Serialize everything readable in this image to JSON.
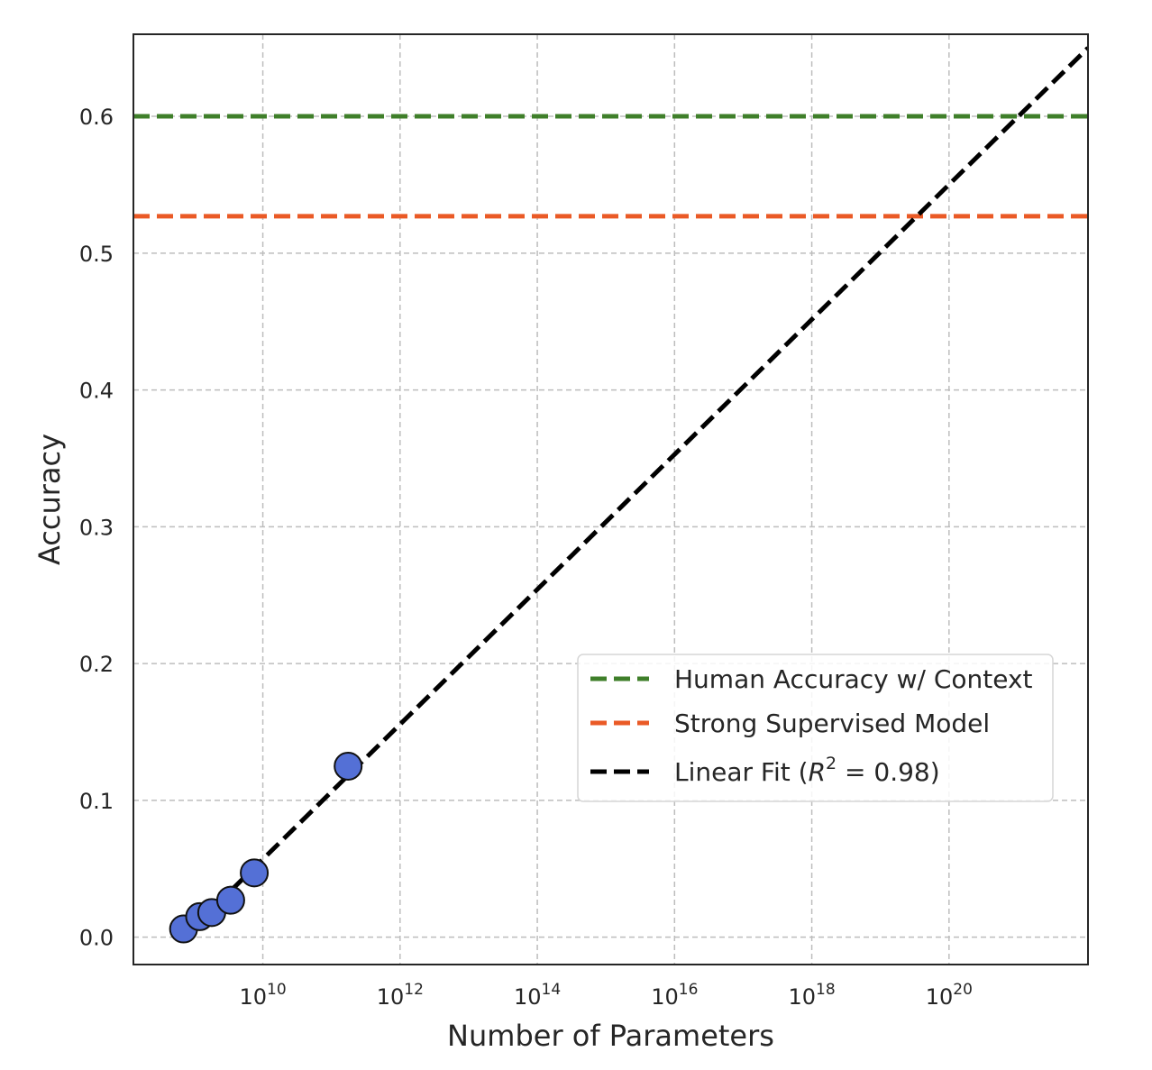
{
  "chart_data": {
    "type": "scatter",
    "title": "",
    "xlabel": "Number of Parameters",
    "ylabel": "Accuracy",
    "x_scale": "log",
    "xlim": [
      130000000.0,
      1.06e+22
    ],
    "ylim": [
      -0.02,
      0.66
    ],
    "grid": true,
    "x_ticks": [
      {
        "value": 10000000000.0,
        "base": "10",
        "exp": "10"
      },
      {
        "value": 1000000000000.0,
        "base": "10",
        "exp": "12"
      },
      {
        "value": 100000000000000.0,
        "base": "10",
        "exp": "14"
      },
      {
        "value": 1e+16,
        "base": "10",
        "exp": "16"
      },
      {
        "value": 1e+18,
        "base": "10",
        "exp": "18"
      },
      {
        "value": 1e+20,
        "base": "10",
        "exp": "20"
      }
    ],
    "y_ticks": [
      {
        "value": 0.0,
        "label": "0.0"
      },
      {
        "value": 0.1,
        "label": "0.1"
      },
      {
        "value": 0.2,
        "label": "0.2"
      },
      {
        "value": 0.3,
        "label": "0.3"
      },
      {
        "value": 0.4,
        "label": "0.4"
      },
      {
        "value": 0.5,
        "label": "0.5"
      },
      {
        "value": 0.6,
        "label": "0.6"
      }
    ],
    "points": [
      {
        "x": 700000000.0,
        "y": 0.006
      },
      {
        "x": 1200000000.0,
        "y": 0.015
      },
      {
        "x": 1800000000.0,
        "y": 0.018
      },
      {
        "x": 3400000000.0,
        "y": 0.027
      },
      {
        "x": 7500000000.0,
        "y": 0.047
      },
      {
        "x": 175000000000.0,
        "y": 0.125
      }
    ],
    "point_color": "#5470d6",
    "reference_lines": [
      {
        "name": "Human Accuracy w/ Context",
        "y": 0.6,
        "color": "#3f7f2a"
      },
      {
        "name": "Strong Supervised Model",
        "y": 0.527,
        "color": "#ea5a26"
      }
    ],
    "fit_line": {
      "name_prefix": "Linear Fit (",
      "name_var": "R",
      "name_sup": "2",
      "name_suffix": " = 0.98)",
      "color": "#000000",
      "x": [
        700000000.0,
        1.06e+22
      ],
      "y": [
        0.0,
        0.65
      ]
    },
    "legend": {
      "position": "lower-right"
    }
  }
}
